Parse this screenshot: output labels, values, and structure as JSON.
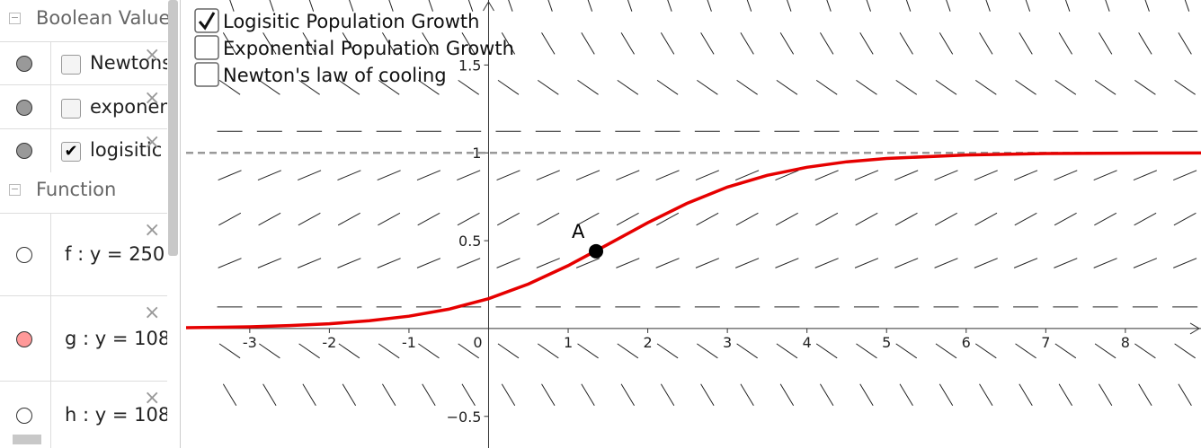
{
  "algebra_view": {
    "groups": [
      {
        "title": "Boolean Value",
        "items": [
          {
            "label": "Newtons",
            "checked": false
          },
          {
            "label": "exponen",
            "checked": false
          },
          {
            "label": "logisitic",
            "checked": true
          }
        ]
      },
      {
        "title": "Function",
        "items": [
          {
            "label": "f : y = 250"
          },
          {
            "label": "g : y = 108"
          },
          {
            "label": "h : y = 108"
          }
        ]
      }
    ]
  },
  "graphics": {
    "checkboxes": [
      {
        "label": "Logisitic Population Growth",
        "checked": true
      },
      {
        "label": "Exponential Population Growth",
        "checked": false
      },
      {
        "label": "Newton's law of cooling",
        "checked": false
      }
    ],
    "chart_data": {
      "type": "line",
      "xlim": [
        -3.8,
        8.95
      ],
      "ylim": [
        -0.68,
        1.87
      ],
      "xticks": [
        -3,
        -2,
        -1,
        0,
        1,
        2,
        3,
        4,
        5,
        6,
        7,
        8
      ],
      "yticks": [
        {
          "value": -0.5,
          "label": "−0.5"
        },
        0.5,
        1,
        1.5
      ],
      "asymptote_y": 1,
      "series": [
        {
          "color": "#e60000",
          "x": [
            -3.8,
            -3,
            -2.5,
            -2,
            -1.5,
            -1,
            -0.5,
            0,
            0.5,
            1,
            1.5,
            2,
            2.5,
            3,
            3.5,
            4,
            4.5,
            5,
            6,
            7,
            8,
            9
          ],
          "values": [
            0.005,
            0.01,
            0.017,
            0.027,
            0.044,
            0.07,
            0.11,
            0.17,
            0.253,
            0.358,
            0.479,
            0.602,
            0.714,
            0.805,
            0.872,
            0.918,
            0.949,
            0.968,
            0.988,
            0.996,
            0.998,
            0.999
          ]
        }
      ],
      "point": {
        "label": "A",
        "x": 1.35,
        "y": 0.44
      }
    }
  }
}
